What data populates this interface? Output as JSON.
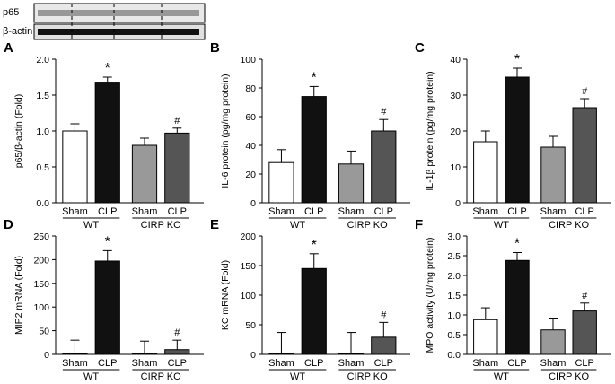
{
  "blot": {
    "labels": [
      "p65",
      "β-actin"
    ]
  },
  "chart_data": [
    {
      "type": "bar",
      "panel": "A",
      "ylabel": "p65/β-actin (Fold)",
      "categories": [
        "Sham",
        "CLP",
        "Sham",
        "CLP"
      ],
      "groups": [
        "WT",
        "CIRP KO"
      ],
      "values": [
        1.0,
        1.68,
        0.8,
        0.97
      ],
      "errors": [
        0.1,
        0.07,
        0.1,
        0.07
      ],
      "colors": [
        "#ffffff",
        "#111111",
        "#999999",
        "#555555"
      ],
      "markers": [
        null,
        "*",
        null,
        "#"
      ],
      "ylim": [
        0,
        2
      ],
      "yticks": [
        {
          "value": 0,
          "label": "0.0"
        },
        0.5,
        {
          "value": 1,
          "label": "1.0"
        },
        1.5,
        {
          "value": 2,
          "label": "2.0"
        }
      ]
    },
    {
      "type": "bar",
      "panel": "B",
      "ylabel": "IL-6 protein (pg/mg protein)",
      "categories": [
        "Sham",
        "CLP",
        "Sham",
        "CLP"
      ],
      "groups": [
        "WT",
        "CIRP KO"
      ],
      "values": [
        28,
        74,
        27,
        50
      ],
      "errors": [
        9,
        7,
        9,
        8
      ],
      "colors": [
        "#ffffff",
        "#111111",
        "#999999",
        "#555555"
      ],
      "markers": [
        null,
        "*",
        null,
        "#"
      ],
      "ylim": [
        0,
        100
      ],
      "yticks": [
        0,
        20,
        40,
        60,
        80,
        100
      ]
    },
    {
      "type": "bar",
      "panel": "C",
      "ylabel": "IL-1β protein (pg/mg protein)",
      "categories": [
        "Sham",
        "CLP",
        "Sham",
        "CLP"
      ],
      "groups": [
        "WT",
        "CIRP KO"
      ],
      "values": [
        17,
        35,
        15.5,
        26.5
      ],
      "errors": [
        3,
        2.5,
        3,
        2.5
      ],
      "colors": [
        "#ffffff",
        "#111111",
        "#999999",
        "#555555"
      ],
      "markers": [
        null,
        "*",
        null,
        "#"
      ],
      "ylim": [
        0,
        40
      ],
      "yticks": [
        0,
        10,
        20,
        30,
        40
      ]
    },
    {
      "type": "bar",
      "panel": "D",
      "ylabel": "MIP2 mRNA (Fold)",
      "categories": [
        "Sham",
        "CLP",
        "Sham",
        "CLP"
      ],
      "groups": [
        "WT",
        "CIRP KO"
      ],
      "values": [
        1,
        197,
        1,
        10
      ],
      "errors": [
        29,
        22,
        27,
        20
      ],
      "colors": [
        "#ffffff",
        "#111111",
        "#999999",
        "#555555"
      ],
      "markers": [
        null,
        "*",
        null,
        "#"
      ],
      "ylim": [
        0,
        250
      ],
      "yticks": [
        0,
        50,
        100,
        150,
        200,
        250
      ]
    },
    {
      "type": "bar",
      "panel": "E",
      "ylabel": "KC mRNA (Fold)",
      "categories": [
        "Sham",
        "CLP",
        "Sham",
        "CLP"
      ],
      "groups": [
        "WT",
        "CIRP KO"
      ],
      "values": [
        1,
        145,
        1,
        29
      ],
      "errors": [
        36,
        25,
        36,
        25
      ],
      "colors": [
        "#ffffff",
        "#111111",
        "#999999",
        "#555555"
      ],
      "markers": [
        null,
        "*",
        null,
        "#"
      ],
      "ylim": [
        0,
        200
      ],
      "yticks": [
        0,
        50,
        100,
        150,
        200
      ]
    },
    {
      "type": "bar",
      "panel": "F",
      "ylabel": "MPO activity (U/mg protein)",
      "categories": [
        "Sham",
        "CLP",
        "Sham",
        "CLP"
      ],
      "groups": [
        "WT",
        "CIRP KO"
      ],
      "values": [
        0.88,
        2.38,
        0.62,
        1.1
      ],
      "errors": [
        0.3,
        0.2,
        0.3,
        0.2
      ],
      "colors": [
        "#ffffff",
        "#111111",
        "#999999",
        "#555555"
      ],
      "markers": [
        null,
        "*",
        null,
        "#"
      ],
      "ylim": [
        0,
        3
      ],
      "yticks": [
        {
          "value": 0,
          "label": "0.0"
        },
        0.5,
        {
          "value": 1,
          "label": "1.0"
        },
        1.5,
        {
          "value": 2,
          "label": "2.0"
        },
        2.5,
        {
          "value": 3,
          "label": "3.0"
        }
      ]
    }
  ]
}
